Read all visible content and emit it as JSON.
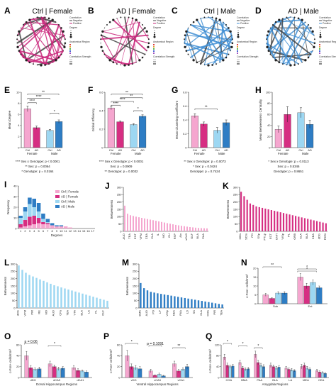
{
  "colors": {
    "ctrl_female": "#f5a6cf",
    "ad_female": "#d62e82",
    "ctrl_male": "#9dd7f2",
    "ad_male": "#2e7dc4",
    "dark": "#444444",
    "grey": "#bbbbbb"
  },
  "network_panels": [
    {
      "label": "A",
      "title": "Ctrl | Female",
      "edge_color": "#c9257a",
      "mode": "female"
    },
    {
      "label": "B",
      "title": "AD | Female",
      "edge_color": "#c9257a",
      "mode": "female"
    },
    {
      "label": "C",
      "title": "Ctrl | Male",
      "edge_color": "#3f8ed3",
      "mode": "male"
    },
    {
      "label": "D",
      "title": "AD | Male",
      "edge_color": "#3f8ed3",
      "mode": "male"
    }
  ],
  "network_legend": {
    "correlation": "Correlation",
    "negative": "Negative",
    "positive": "Positive",
    "degree": "Degree",
    "anatomical_region": "Anatomical Region",
    "correlation_strength": "Correlation Strength"
  },
  "chart_data": [
    {
      "id": "E",
      "type": "bar",
      "ylabel": "Mean Degree",
      "ylim": [
        0,
        10
      ],
      "ticks": [
        0,
        2,
        4,
        6,
        8,
        10
      ],
      "groups": [
        "Female",
        "Male"
      ],
      "categories": [
        "Ctrl",
        "AD",
        "Ctrl",
        "AD"
      ],
      "values": [
        7.0,
        3.6,
        3.1,
        4.7
      ],
      "errors": [
        0.5,
        0.3,
        0.2,
        0.3
      ],
      "significance": [
        {
          "pair": [
            0,
            3
          ],
          "label": "**",
          "level": 9.7
        },
        {
          "pair": [
            0,
            2
          ],
          "label": "****",
          "level": 8.9
        },
        {
          "pair": [
            0,
            1
          ],
          "label": "****",
          "level": 8.1
        },
        {
          "pair": [
            2,
            3
          ],
          "label": "*",
          "level": 6.2
        }
      ],
      "stats": [
        "**** Sex x Genotype: p < 0.0001",
        "** Sex: p = 0.0064",
        "* Genotype: p = 0.0164"
      ]
    },
    {
      "id": "F",
      "type": "bar",
      "ylabel": "Global Efficiency",
      "ylim": [
        0,
        0.6
      ],
      "ticks": [
        0.0,
        0.2,
        0.4,
        0.6
      ],
      "groups": [
        "Female",
        "Male"
      ],
      "categories": [
        "Ctrl",
        "AD",
        "Ctrl",
        "AD"
      ],
      "values": [
        0.43,
        0.28,
        0.25,
        0.34
      ],
      "errors": [
        0.02,
        0.01,
        0.01,
        0.015
      ],
      "significance": [
        {
          "pair": [
            0,
            3
          ],
          "label": "**",
          "level": 0.58
        },
        {
          "pair": [
            1,
            3
          ],
          "label": "**",
          "level": 0.54
        },
        {
          "pair": [
            0,
            2
          ],
          "label": "****",
          "level": 0.5
        },
        {
          "pair": [
            0,
            1
          ],
          "label": "****",
          "level": 0.46
        },
        {
          "pair": [
            2,
            3
          ],
          "label": "*",
          "level": 0.4
        }
      ],
      "stats": [
        "**** Sex x Genotype: p < 0.0001",
        "Sex: p = 0.0909",
        "** Genotype: p = 0.0032"
      ]
    },
    {
      "id": "G",
      "type": "bar",
      "ylabel": "Mean Clustering Coefficient",
      "ylim": [
        0,
        0.8
      ],
      "ticks": [
        0.0,
        0.2,
        0.4,
        0.6,
        0.8
      ],
      "groups": [
        "Female",
        "Male"
      ],
      "categories": [
        "Ctrl",
        "AD",
        "Ctrl",
        "AD"
      ],
      "values": [
        0.46,
        0.34,
        0.25,
        0.36
      ],
      "errors": [
        0.03,
        0.03,
        0.04,
        0.04
      ],
      "significance": [
        {
          "pair": [
            0,
            2
          ],
          "label": "**",
          "level": 0.56
        }
      ],
      "stats": [
        "** Sex x Genotype: p = 0.0073",
        "* Sex: p = 0.0424",
        "Genotype: p = 0.7424"
      ]
    },
    {
      "id": "H",
      "type": "bar",
      "ylabel": "Mean Betweenness Centrality",
      "ylim": [
        0,
        100
      ],
      "ticks": [
        0,
        20,
        40,
        60,
        80,
        100
      ],
      "groups": [
        "Female",
        "Male"
      ],
      "categories": [
        "Ctrl",
        "AD",
        "Ctrl",
        "AD"
      ],
      "values": [
        33,
        60,
        63,
        42
      ],
      "errors": [
        6,
        14,
        9,
        7
      ],
      "significance": [],
      "stats": [
        "* Sex x Genotype: p = 0.0113",
        "Sex: p = 0.5346",
        "Genotype: p = 0.8651"
      ]
    },
    {
      "id": "I",
      "type": "bar",
      "xlabel": "Degrees",
      "ylabel": "Frequency",
      "ylim": [
        0,
        40
      ],
      "ticks": [
        0,
        10,
        20,
        30,
        40
      ],
      "x": [
        1,
        2,
        3,
        4,
        5,
        6,
        7,
        8,
        9,
        10,
        11,
        12,
        13,
        14,
        15,
        16,
        17
      ],
      "series": [
        {
          "name": "Ctrl | Female",
          "values": [
            1,
            2,
            3,
            4,
            5,
            4,
            4,
            3,
            2,
            2,
            2,
            1,
            0,
            0,
            0,
            0,
            0
          ]
        },
        {
          "name": "AD | Female",
          "values": [
            3,
            6,
            8,
            8,
            5,
            2,
            1,
            0,
            0,
            0,
            0,
            0,
            0,
            0,
            0,
            0,
            0
          ]
        },
        {
          "name": "Ctrl | Male",
          "values": [
            6,
            8,
            12,
            8,
            6,
            3,
            1,
            0,
            0,
            0,
            0,
            0,
            0,
            0,
            0,
            0,
            0
          ]
        },
        {
          "name": "AD | Male",
          "values": [
            2,
            4,
            6,
            8,
            8,
            5,
            3,
            2,
            1,
            1,
            0,
            0,
            0,
            0,
            0,
            0,
            0
          ]
        }
      ]
    },
    {
      "id": "J",
      "type": "bar",
      "ylabel": "Betweenness",
      "ylim": [
        0,
        300
      ],
      "ticks": [
        0,
        50,
        100,
        150,
        200,
        250,
        300
      ],
      "categories": [
        "AUD",
        "ECT",
        "TEA",
        "PIR",
        "ENT",
        "dCA1",
        "VPM",
        "PERI",
        "CEA",
        "LA",
        "CLA",
        "CPu",
        "IL",
        "PL",
        "MO",
        "SS",
        "GU",
        "VIS",
        "RSP",
        "AId",
        "AIv",
        "vCA1",
        "vCA3",
        "vDG",
        "OLF",
        "COA",
        "BLA",
        "BMA",
        "PAA",
        "TH"
      ],
      "values": [
        175,
        120,
        110,
        105,
        100,
        96,
        92,
        88,
        84,
        80,
        76,
        72,
        68,
        64,
        60,
        56,
        52,
        48,
        44,
        41,
        38,
        35,
        32,
        29,
        27,
        25,
        23,
        22,
        21,
        20
      ]
    },
    {
      "id": "K",
      "type": "bar",
      "ylabel": "Betweenness",
      "ylim": [
        0,
        300
      ],
      "ticks": [
        0,
        50,
        100,
        150,
        200,
        250,
        300
      ],
      "categories": [
        "MOs",
        "LH",
        "SCm",
        "dCA3",
        "PO",
        "VPL",
        "SSp",
        "RSPd",
        "PTLp",
        "TEa",
        "ECT",
        "PERI",
        "ENTl",
        "AUDp",
        "VISp",
        "RSPv",
        "PL",
        "ILA",
        "ORB",
        "AI",
        "CLA",
        "EP",
        "BLA",
        "LA",
        "CEA",
        "PIR",
        "dDG",
        "vCA1",
        "PERI"
      ],
      "values": [
        270,
        240,
        215,
        190,
        180,
        170,
        165,
        160,
        155,
        150,
        145,
        140,
        135,
        130,
        125,
        120,
        115,
        110,
        105,
        100,
        95,
        90,
        85,
        80,
        75,
        70,
        65,
        60,
        55
      ]
    },
    {
      "id": "L",
      "type": "bar",
      "ylabel": "Betweenness",
      "ylim": [
        0,
        300
      ],
      "ticks": [
        0,
        50,
        100,
        150,
        200,
        250,
        300
      ],
      "categories": [
        "dDG",
        "PVT",
        "VPM",
        "MD",
        "PIR",
        "LP",
        "RE",
        "vCA1",
        "MO",
        "SS",
        "AUD",
        "VIS",
        "CPu",
        "CTX",
        "TEA",
        "ENT",
        "VTA",
        "PAA",
        "BLA",
        "CEA",
        "LA",
        "RSP",
        "PL",
        "IL",
        "OLF",
        "GU"
      ],
      "values": [
        290,
        260,
        240,
        225,
        215,
        205,
        195,
        185,
        175,
        165,
        155,
        148,
        140,
        133,
        126,
        119,
        112,
        105,
        98,
        91,
        84,
        77,
        70,
        63,
        56,
        49
      ]
    },
    {
      "id": "M",
      "type": "bar",
      "ylabel": "Betweenness",
      "ylim": [
        0,
        300
      ],
      "ticks": [
        0,
        50,
        100,
        150,
        200,
        250,
        300
      ],
      "categories": [
        "BMA",
        "vCA3",
        "AUD",
        "LH",
        "PO",
        "VPM",
        "LP",
        "GU",
        "VISp",
        "BLA",
        "CEA",
        "PTLp",
        "PAA",
        "IL",
        "LD",
        "OLF",
        "SS",
        "MO",
        "CLA",
        "EP",
        "COA",
        "PL",
        "PIR",
        "ENT",
        "TEA"
      ],
      "values": [
        170,
        135,
        120,
        110,
        105,
        100,
        96,
        92,
        88,
        84,
        80,
        76,
        72,
        68,
        64,
        60,
        56,
        52,
        48,
        44,
        40,
        36,
        32,
        28,
        24
      ]
    },
    {
      "id": "N",
      "type": "grouped_bar",
      "ylabel": "c-Fos+ cells/mm²",
      "ylim": [
        0,
        20
      ],
      "ticks": [
        0,
        5,
        10,
        15,
        20
      ],
      "categories": [
        "Sub",
        "Ent"
      ],
      "series": [
        {
          "name": "Ctrl | Female",
          "values": [
            5,
            15
          ]
        },
        {
          "name": "AD | Female",
          "values": [
            3,
            10
          ]
        },
        {
          "name": "Ctrl | Male",
          "values": [
            6,
            12
          ]
        },
        {
          "name": "AD | Male",
          "values": [
            6,
            9
          ]
        }
      ],
      "errors": [
        [
          0.8,
          2
        ],
        [
          0.5,
          1.5
        ],
        [
          0.8,
          1.5
        ],
        [
          0.8,
          1
        ]
      ],
      "significance_labels": [
        "**",
        "*",
        "*"
      ]
    },
    {
      "id": "O",
      "type": "grouped_bar",
      "ylabel": "c-Fos+ cells/mm²",
      "xlabel": "Dorsal Hippocampus Regions",
      "ylim": [
        0,
        60
      ],
      "ticks": [
        0,
        20,
        40,
        60
      ],
      "categories": [
        "dDG",
        "dCA3",
        "dCA1"
      ],
      "series": [
        {
          "name": "Ctrl | Female",
          "values": [
            40,
            25,
            18
          ]
        },
        {
          "name": "AD | Female",
          "values": [
            18,
            20,
            13
          ]
        },
        {
          "name": "Ctrl | Male",
          "values": [
            15,
            16,
            12
          ]
        },
        {
          "name": "AD | Male",
          "values": [
            16,
            17,
            10
          ]
        }
      ],
      "errors": [
        [
          8,
          5,
          4
        ],
        [
          4,
          3,
          3
        ],
        [
          3,
          3,
          2
        ],
        [
          3,
          3,
          2
        ]
      ],
      "significance_labels": [
        "p = 0.06",
        "*"
      ]
    },
    {
      "id": "P",
      "type": "grouped_bar",
      "ylabel": "c-Fos+ cells/mm²",
      "xlabel": "Ventral Hippocampus Regions",
      "ylim": [
        0,
        60
      ],
      "ticks": [
        0,
        20,
        40,
        60
      ],
      "categories": [
        "vDG",
        "vCA3",
        "vCA1"
      ],
      "series": [
        {
          "name": "Ctrl | Female",
          "values": [
            40,
            12,
            25
          ]
        },
        {
          "name": "AD | Female",
          "values": [
            20,
            4,
            12
          ]
        },
        {
          "name": "Ctrl | Male",
          "values": [
            18,
            6,
            15
          ]
        },
        {
          "name": "AD | Male",
          "values": [
            16,
            3,
            20
          ]
        }
      ],
      "errors": [
        [
          10,
          3,
          5
        ],
        [
          5,
          1,
          3
        ],
        [
          4,
          2,
          3
        ],
        [
          4,
          1,
          4
        ]
      ],
      "significance_labels": [
        "*",
        "p = 0.1091",
        "**"
      ]
    },
    {
      "id": "Q",
      "type": "grouped_bar",
      "ylabel": "c-Fos+ cells/mm²",
      "xlabel": "Amygdala Regions",
      "ylim": [
        0,
        120
      ],
      "ticks": [
        0,
        40,
        80,
        120
      ],
      "categories": [
        "COA",
        "BMA",
        "PAA",
        "BLA",
        "LA",
        "MEA",
        "CEA"
      ],
      "series": [
        {
          "name": "Ctrl | Female",
          "values": [
            75,
            55,
            85,
            45,
            35,
            40,
            25
          ]
        },
        {
          "name": "AD | Female",
          "values": [
            45,
            35,
            55,
            40,
            30,
            45,
            20
          ]
        },
        {
          "name": "Ctrl | Male",
          "values": [
            40,
            30,
            45,
            35,
            28,
            35,
            18
          ]
        },
        {
          "name": "AD | Male",
          "values": [
            42,
            32,
            40,
            38,
            25,
            30,
            15
          ]
        }
      ],
      "errors": [
        [
          10,
          8,
          12,
          8,
          6,
          8,
          5
        ],
        [
          8,
          6,
          8,
          6,
          5,
          8,
          4
        ],
        [
          6,
          5,
          7,
          6,
          5,
          6,
          3
        ],
        [
          6,
          5,
          7,
          6,
          4,
          5,
          3
        ]
      ],
      "significance_labels": [
        "*",
        "*",
        "*"
      ]
    }
  ]
}
